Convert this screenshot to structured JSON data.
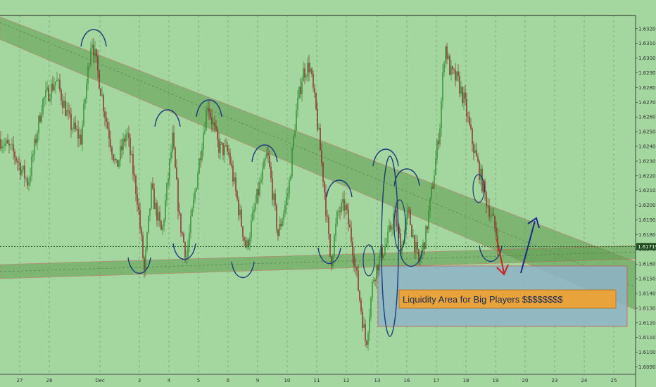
{
  "chart_data": {
    "type": "candlestick",
    "title": "",
    "xlabel": "",
    "ylabel": "",
    "ylim": [
      1.6085,
      1.6329
    ],
    "y_ticks": [
      "1.63200",
      "1.63100",
      "1.63000",
      "1.62900",
      "1.62800",
      "1.62700",
      "1.62600",
      "1.62500",
      "1.62400",
      "1.62300",
      "1.62200",
      "1.62100",
      "1.62000",
      "1.61900",
      "1.61800",
      "1.61700",
      "1.61600",
      "1.61500",
      "1.61400",
      "1.61300",
      "1.61200",
      "1.61100",
      "1.61000",
      "1.60900"
    ],
    "x_ticks": [
      "27",
      "28",
      "Dec",
      "3",
      "4",
      "5",
      "6",
      "9",
      "10",
      "11",
      "12",
      "13",
      "16",
      "17",
      "18",
      "19",
      "20",
      "23",
      "24",
      "25"
    ],
    "current_price": "1.61719",
    "current_price_value": 1.61719,
    "annotation": "Liquidity Area for Big Players $$$$$$$$",
    "grid": true,
    "candle_colors": {
      "up": "#2e8b2e",
      "down": "#8b2323"
    },
    "path": [
      [
        0,
        1.6245
      ],
      [
        20,
        1.6235
      ],
      [
        40,
        1.6215
      ],
      [
        60,
        1.627
      ],
      [
        80,
        1.6285
      ],
      [
        100,
        1.6255
      ],
      [
        115,
        1.6245
      ],
      [
        130,
        1.6315
      ],
      [
        150,
        1.626
      ],
      [
        165,
        1.6225
      ],
      [
        180,
        1.625
      ],
      [
        195,
        1.6205
      ],
      [
        205,
        1.6155
      ],
      [
        215,
        1.621
      ],
      [
        230,
        1.618
      ],
      [
        245,
        1.6245
      ],
      [
        255,
        1.619
      ],
      [
        265,
        1.6165
      ],
      [
        280,
        1.622
      ],
      [
        295,
        1.627
      ],
      [
        310,
        1.624
      ],
      [
        325,
        1.6235
      ],
      [
        340,
        1.6195
      ],
      [
        350,
        1.617
      ],
      [
        365,
        1.6205
      ],
      [
        380,
        1.6235
      ],
      [
        395,
        1.618
      ],
      [
        410,
        1.621
      ],
      [
        420,
        1.626
      ],
      [
        430,
        1.629
      ],
      [
        440,
        1.6295
      ],
      [
        450,
        1.626
      ],
      [
        460,
        1.6215
      ],
      [
        470,
        1.616
      ],
      [
        480,
        1.6195
      ],
      [
        490,
        1.62
      ],
      [
        500,
        1.6175
      ],
      [
        510,
        1.614
      ],
      [
        520,
        1.6105
      ],
      [
        530,
        1.615
      ],
      [
        540,
        1.6165
      ],
      [
        550,
        1.6175
      ],
      [
        560,
        1.6195
      ],
      [
        570,
        1.617
      ],
      [
        580,
        1.6195
      ],
      [
        595,
        1.616
      ],
      [
        605,
        1.618
      ],
      [
        615,
        1.6215
      ],
      [
        625,
        1.6255
      ],
      [
        632,
        1.631
      ],
      [
        640,
        1.629
      ],
      [
        650,
        1.6285
      ],
      [
        660,
        1.627
      ],
      [
        670,
        1.6245
      ],
      [
        680,
        1.6225
      ],
      [
        690,
        1.6205
      ],
      [
        700,
        1.619
      ],
      [
        708,
        1.6175
      ]
    ]
  }
}
